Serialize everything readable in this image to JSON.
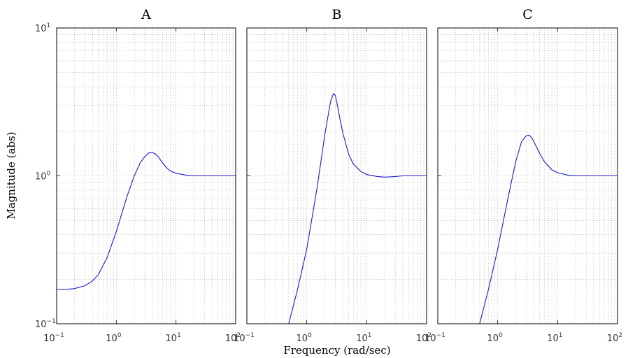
{
  "chart_data": [
    {
      "type": "line",
      "title": "A",
      "xlabel": "Frequency (rad/sec)",
      "ylabel": "Magnitude (abs)",
      "x_scale": "log",
      "y_scale": "log",
      "xlim": [
        0.1,
        100
      ],
      "ylim": [
        0.1,
        10
      ],
      "grid": true,
      "series": [
        {
          "color": "#1a1acc",
          "x": [
            0.1,
            0.15,
            0.2,
            0.3,
            0.4,
            0.5,
            0.7,
            1.0,
            1.5,
            2.0,
            2.5,
            3.0,
            3.5,
            4.0,
            4.5,
            5.0,
            6.0,
            7.0,
            8.0,
            10,
            15,
            20,
            30,
            50,
            100
          ],
          "values": [
            0.17,
            0.171,
            0.173,
            0.181,
            0.195,
            0.215,
            0.28,
            0.42,
            0.72,
            1.0,
            1.22,
            1.35,
            1.43,
            1.44,
            1.41,
            1.35,
            1.22,
            1.13,
            1.08,
            1.04,
            1.01,
            1.0,
            1.0,
            1.0,
            1.0
          ]
        }
      ]
    },
    {
      "type": "line",
      "title": "B",
      "x_scale": "log",
      "y_scale": "log",
      "xlim": [
        0.1,
        100
      ],
      "ylim": [
        0.1,
        10
      ],
      "grid": true,
      "series": [
        {
          "color": "#1a1acc",
          "x": [
            0.5,
            0.7,
            1.0,
            1.5,
            2.0,
            2.5,
            2.8,
            3.0,
            3.3,
            3.6,
            4.0,
            5.0,
            6.0,
            8.0,
            10,
            15,
            20,
            25,
            30,
            40,
            50,
            70,
            100
          ],
          "values": [
            0.1,
            0.17,
            0.32,
            0.85,
            1.9,
            3.2,
            3.6,
            3.5,
            2.9,
            2.4,
            1.95,
            1.4,
            1.2,
            1.07,
            1.02,
            0.99,
            0.98,
            0.985,
            0.99,
            1.0,
            1.0,
            1.0,
            1.0
          ]
        }
      ]
    },
    {
      "type": "line",
      "title": "C",
      "x_scale": "log",
      "y_scale": "log",
      "xlim": [
        0.1,
        100
      ],
      "ylim": [
        0.1,
        10
      ],
      "grid": true,
      "series": [
        {
          "color": "#1a1acc",
          "x": [
            0.5,
            0.7,
            1.0,
            1.5,
            2.0,
            2.5,
            3.0,
            3.4,
            3.8,
            4.5,
            5.0,
            6.0,
            8.0,
            10,
            15,
            20,
            30,
            50,
            100
          ],
          "values": [
            0.1,
            0.17,
            0.32,
            0.72,
            1.25,
            1.7,
            1.87,
            1.88,
            1.78,
            1.55,
            1.42,
            1.25,
            1.1,
            1.05,
            1.01,
            1.0,
            1.0,
            1.0,
            1.0
          ]
        }
      ]
    }
  ],
  "x_ticks": [
    {
      "base": "10",
      "exp": "−1"
    },
    {
      "base": "10",
      "exp": "0"
    },
    {
      "base": "10",
      "exp": "1"
    },
    {
      "base": "10",
      "exp": "2"
    }
  ],
  "y_ticks": [
    {
      "base": "10",
      "exp": "−1"
    },
    {
      "base": "10",
      "exp": "0"
    },
    {
      "base": "10",
      "exp": "1"
    }
  ]
}
